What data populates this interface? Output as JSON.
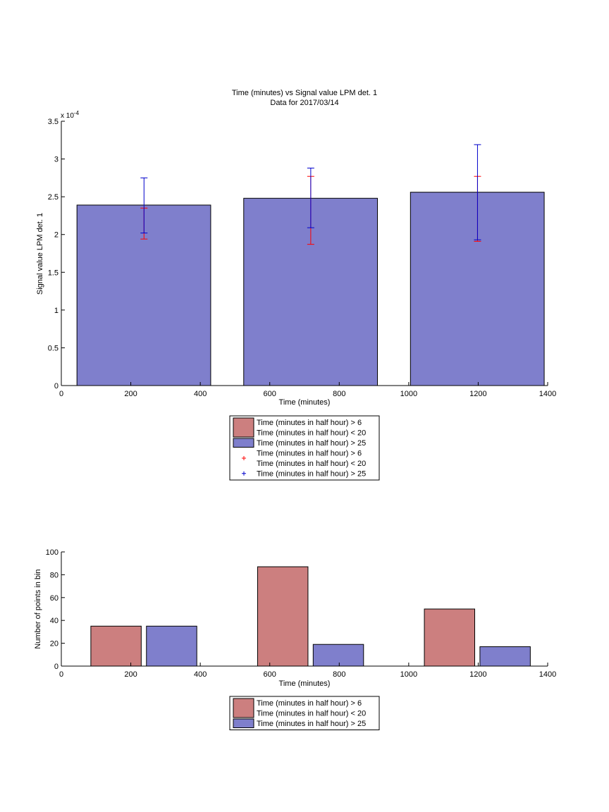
{
  "chart_data": [
    {
      "type": "bar",
      "title": "Time (minutes) vs Signal value LPM det. 1",
      "subtitle": "Data for 2017/03/14",
      "xlabel": "Time (minutes)",
      "ylabel": "Signal value LPM det. 1",
      "exponent_label": "x 10",
      "exponent_power": "-4",
      "xlim": [
        0,
        1400
      ],
      "ylim": [
        0,
        3.5
      ],
      "xticks": [
        "0",
        "200",
        "400",
        "600",
        "800",
        "1000",
        "1200",
        "1400"
      ],
      "yticks": [
        "0",
        "0.5",
        "1",
        "1.5",
        "2",
        "2.5",
        "3",
        "3.5"
      ],
      "bars": [
        {
          "x_start": 45,
          "x_end": 430,
          "value": 2.39
        },
        {
          "x_start": 525,
          "x_end": 910,
          "value": 2.48
        },
        {
          "x_start": 1005,
          "x_end": 1390,
          "value": 2.56
        }
      ],
      "errorbars": [
        {
          "series": "red",
          "x": 238,
          "low": 1.94,
          "high": 2.35
        },
        {
          "series": "blue",
          "x": 238,
          "low": 2.02,
          "high": 2.75
        },
        {
          "series": "red",
          "x": 718,
          "low": 1.87,
          "high": 2.77
        },
        {
          "series": "blue",
          "x": 718,
          "low": 2.09,
          "high": 2.88
        },
        {
          "series": "red",
          "x": 1198,
          "low": 1.91,
          "high": 2.77
        },
        {
          "series": "blue",
          "x": 1198,
          "low": 1.93,
          "high": 3.19
        }
      ],
      "legend_placement": "below",
      "legend": [
        {
          "kind": "patch",
          "color": "#cc7f7f",
          "lines": [
            "Time (minutes in half hour) > 6",
            "Time (minutes in half hour) < 20"
          ]
        },
        {
          "kind": "patch",
          "color": "#7f7fcc",
          "lines": [
            "Time (minutes in half hour) > 25"
          ]
        },
        {
          "kind": "marker",
          "color": "#ff0000",
          "lines": [
            "Time (minutes in half hour) > 6",
            "Time (minutes in half hour) < 20"
          ]
        },
        {
          "kind": "marker",
          "color": "#0000cc",
          "lines": [
            "Time (minutes in half hour) > 25"
          ]
        }
      ],
      "colors": {
        "bar": "#7f7fcc",
        "red": "#ff0000",
        "blue": "#0000cc"
      }
    },
    {
      "type": "bar",
      "xlabel": "Time (minutes)",
      "ylabel": "Number of points in bin",
      "xlim": [
        0,
        1400
      ],
      "ylim": [
        0,
        100
      ],
      "xticks": [
        "0",
        "200",
        "400",
        "600",
        "800",
        "1000",
        "1200",
        "1400"
      ],
      "yticks": [
        "0",
        "20",
        "40",
        "60",
        "80",
        "100"
      ],
      "series": [
        {
          "color": "#cc7f7f",
          "bars": [
            {
              "x_start": 85,
              "x_end": 230,
              "value": 35
            },
            {
              "x_start": 565,
              "x_end": 710,
              "value": 87
            },
            {
              "x_start": 1045,
              "x_end": 1190,
              "value": 50
            }
          ]
        },
        {
          "color": "#7f7fcc",
          "bars": [
            {
              "x_start": 245,
              "x_end": 390,
              "value": 35
            },
            {
              "x_start": 725,
              "x_end": 870,
              "value": 19
            },
            {
              "x_start": 1205,
              "x_end": 1350,
              "value": 17
            }
          ]
        }
      ],
      "legend_placement": "below",
      "legend": [
        {
          "kind": "patch",
          "color": "#cc7f7f",
          "lines": [
            "Time (minutes in half hour) > 6",
            "Time (minutes in half hour) < 20"
          ]
        },
        {
          "kind": "patch",
          "color": "#7f7fcc",
          "lines": [
            "Time (minutes in half hour) > 25"
          ]
        }
      ]
    }
  ]
}
